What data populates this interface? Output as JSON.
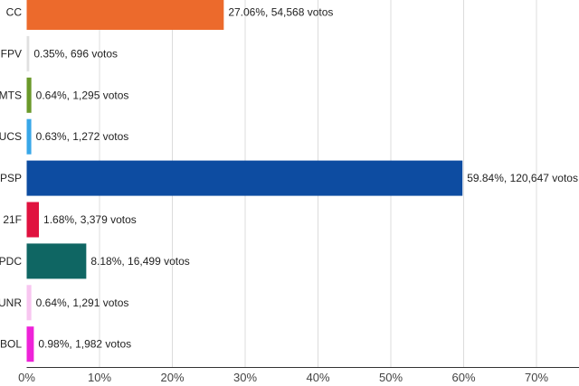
{
  "chart_data": {
    "type": "bar",
    "orientation": "horizontal",
    "categories": [
      "CC",
      "FPV",
      "MTS",
      "UCS",
      "PSP",
      "21F",
      "PDC",
      "UNR",
      "BOL"
    ],
    "values": [
      27.06,
      0.35,
      0.64,
      0.63,
      59.84,
      1.68,
      8.18,
      0.64,
      0.98
    ],
    "votes": [
      54568,
      696,
      1295,
      1272,
      120647,
      3379,
      16499,
      1291,
      1982
    ],
    "data_labels": [
      "27.06%,  54,568 votos",
      "0.35%,  696 votos",
      "0.64%,  1,295 votos",
      "0.63%,  1,272 votos",
      "59.84%,  120,647 votos",
      "1.68%,  3,379 votos",
      "8.18%,  16,499 votos",
      "0.64%,  1,291 votos",
      "0.98%,  1,982 votos"
    ],
    "colors": [
      "#ec6a2c",
      "#e0e0e0",
      "#6a992a",
      "#38a7e8",
      "#0d4ca1",
      "#e0123f",
      "#0f6663",
      "#f8c6f0",
      "#ee22d8"
    ],
    "x_ticks": [
      0,
      10,
      20,
      30,
      40,
      50,
      60,
      70
    ],
    "x_tick_labels": [
      "0%",
      "10%",
      "20%",
      "30%",
      "40%",
      "50%",
      "60%",
      "70%"
    ],
    "xlim": [
      0,
      75
    ],
    "grid": true,
    "title": "",
    "xlabel": "",
    "ylabel": ""
  }
}
